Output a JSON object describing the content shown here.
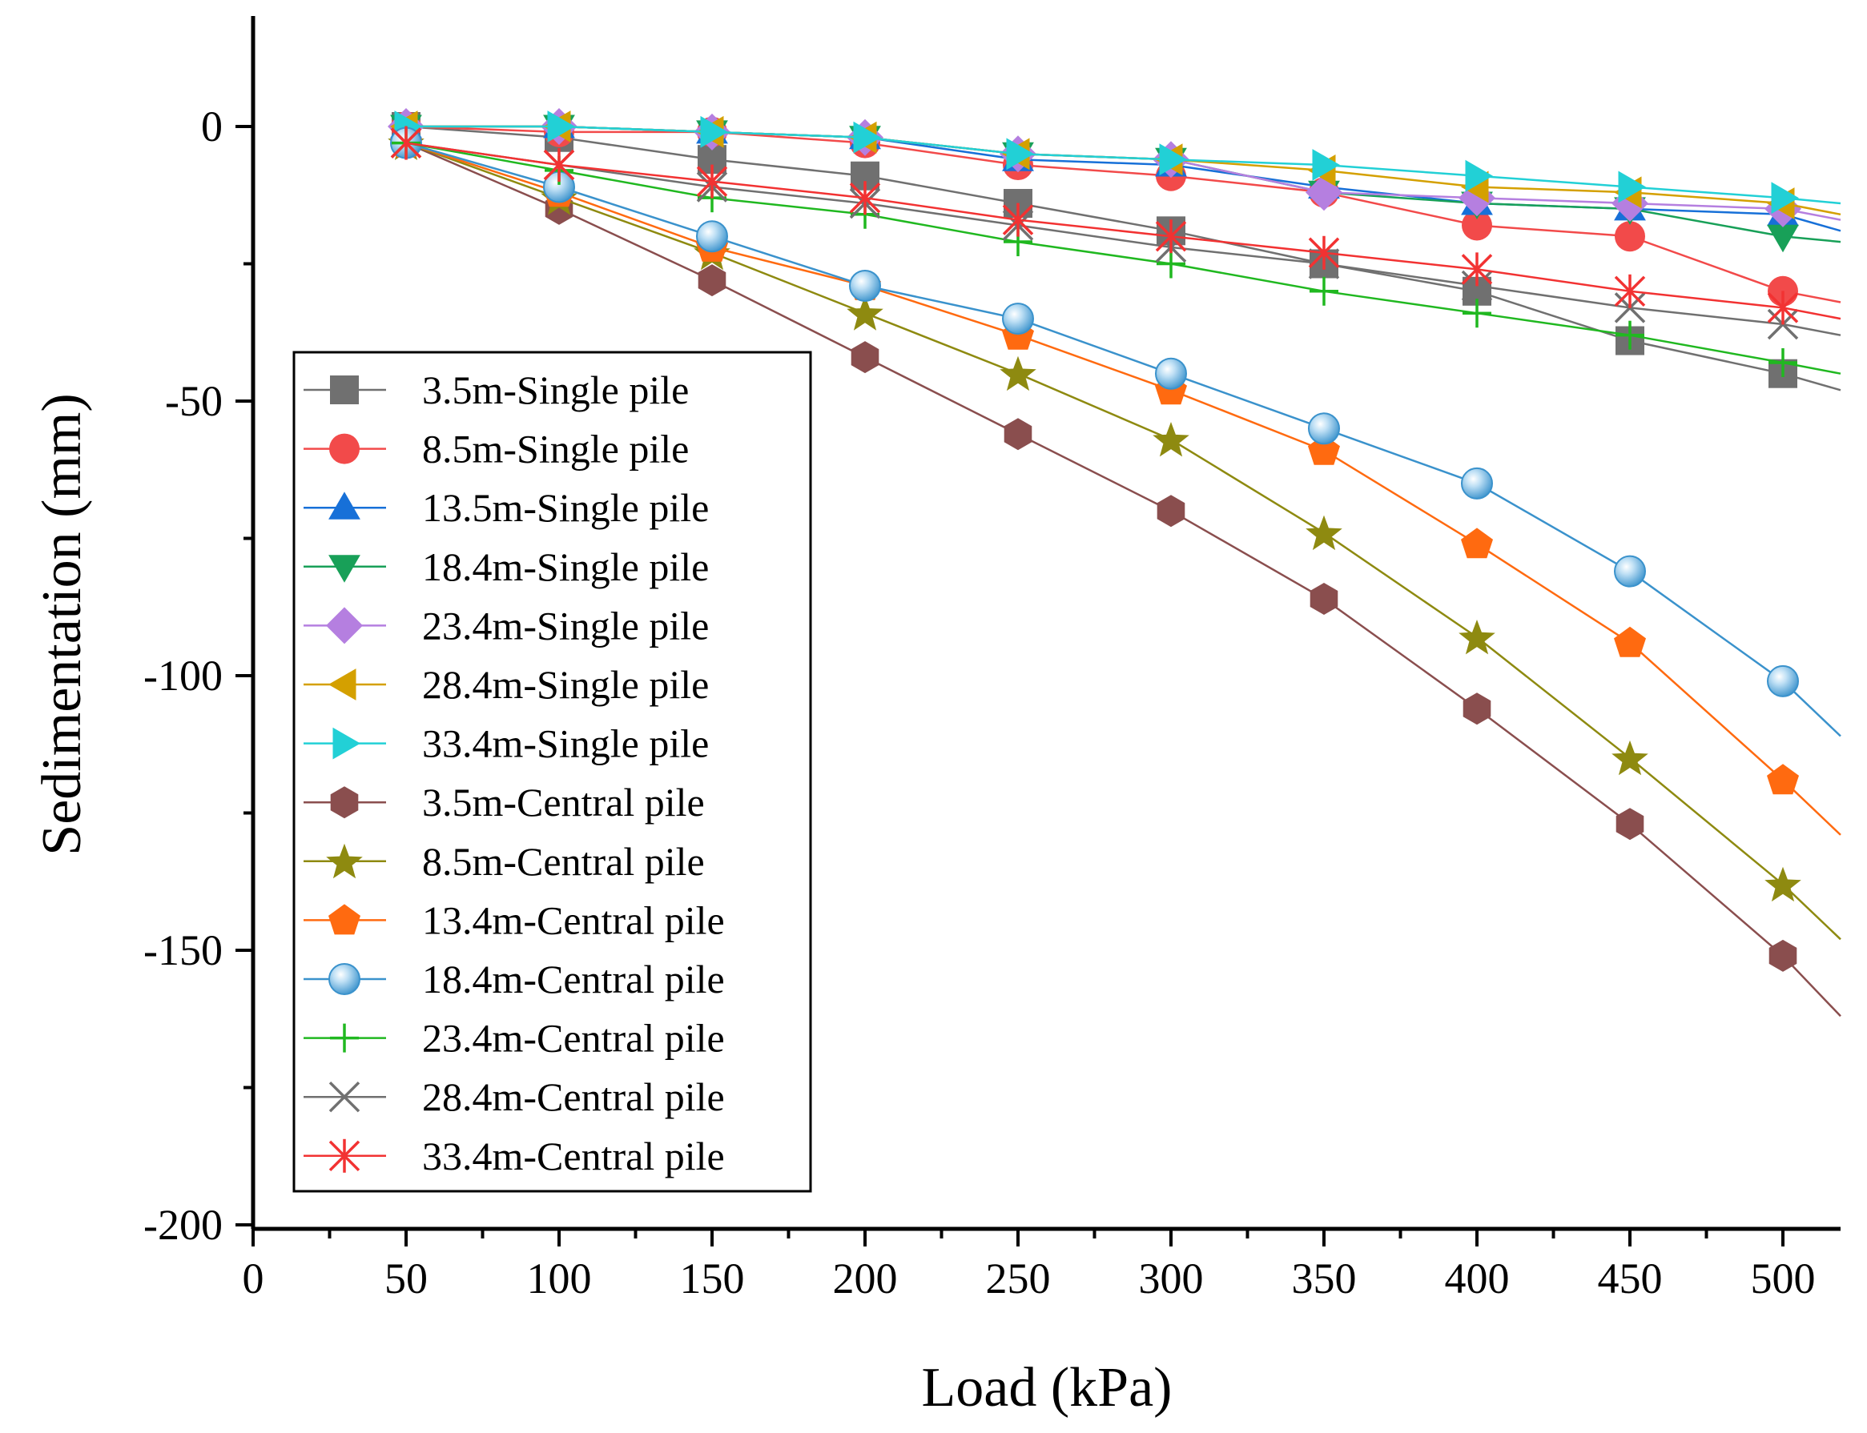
{
  "chart_data": {
    "type": "line",
    "title": "",
    "xlabel": "Load (kPa)",
    "ylabel": "Sedimentation (mm)",
    "xlim": [
      0,
      520
    ],
    "ylim": [
      -200,
      20
    ],
    "x_ticks": [
      0,
      50,
      100,
      150,
      200,
      250,
      300,
      350,
      400,
      450,
      500
    ],
    "y_ticks": [
      0,
      -50,
      -100,
      -150,
      -200
    ],
    "grid": false,
    "legend_position": "center-left",
    "x": [
      50,
      100,
      150,
      200,
      250,
      300,
      350,
      400,
      450,
      500
    ],
    "series": [
      {
        "name": "3.5m-Single pile",
        "color": "#707070",
        "marker": "square",
        "values": [
          0,
          -2,
          -6,
          -9,
          -14,
          -19,
          -25,
          -30,
          -39,
          -45
        ],
        "extend_to": -48
      },
      {
        "name": "8.5m-Single pile",
        "color": "#f24a4a",
        "marker": "circle",
        "values": [
          0,
          -1,
          -1,
          -3,
          -7,
          -9,
          -12,
          -18,
          -20,
          -30
        ],
        "extend_to": -32
      },
      {
        "name": "13.5m-Single pile",
        "color": "#1770d8",
        "marker": "triangle-up",
        "values": [
          0,
          0,
          -1,
          -2,
          -6,
          -7,
          -11,
          -14,
          -15,
          -16
        ],
        "extend_to": -19
      },
      {
        "name": "18.4m-Single pile",
        "color": "#18a058",
        "marker": "triangle-down",
        "values": [
          0,
          0,
          -1,
          -2,
          -5,
          -6,
          -12,
          -14,
          -15,
          -20
        ],
        "extend_to": -21
      },
      {
        "name": "23.4m-Single pile",
        "color": "#b57fe0",
        "marker": "diamond",
        "values": [
          0,
          0,
          -1,
          -2,
          -5,
          -6,
          -12,
          -13,
          -14,
          -15
        ],
        "extend_to": -17
      },
      {
        "name": "28.4m-Single pile",
        "color": "#d4a000",
        "marker": "triangle-left",
        "values": [
          0,
          0,
          -1,
          -2,
          -5,
          -6,
          -8,
          -11,
          -12,
          -14
        ],
        "extend_to": -16
      },
      {
        "name": "33.4m-Single pile",
        "color": "#22d0d6",
        "marker": "triangle-right",
        "values": [
          0,
          0,
          -1,
          -2,
          -5,
          -6,
          -7,
          -9,
          -11,
          -13
        ],
        "extend_to": -14
      },
      {
        "name": "3.5m-Central pile",
        "color": "#8a4e4e",
        "marker": "hexagon",
        "values": [
          -3,
          -15,
          -28,
          -42,
          -56,
          -70,
          -86,
          -106,
          -127,
          -151
        ],
        "extend_to": -162
      },
      {
        "name": "8.5m-Central pile",
        "color": "#8e8a10",
        "marker": "star",
        "values": [
          -3,
          -13,
          -23,
          -34,
          -45,
          -57,
          -74,
          -93,
          -115,
          -138
        ],
        "extend_to": -148
      },
      {
        "name": "13.4m-Central pile",
        "color": "#ff6a10",
        "marker": "pentagon",
        "values": [
          -3,
          -12,
          -22,
          -29,
          -38,
          -48,
          -59,
          -76,
          -94,
          -119
        ],
        "extend_to": -129
      },
      {
        "name": "18.4m-Central pile",
        "color": "#3a92cc",
        "marker": "sphere",
        "values": [
          -3,
          -11,
          -20,
          -29,
          -35,
          -45,
          -55,
          -65,
          -81,
          -101
        ],
        "extend_to": -111
      },
      {
        "name": "23.4m-Central pile",
        "color": "#20b820",
        "marker": "plus",
        "values": [
          -3,
          -8,
          -13,
          -16,
          -21,
          -25,
          -30,
          -34,
          -38,
          -43
        ],
        "extend_to": -45
      },
      {
        "name": "28.4m-Central pile",
        "color": "#707070",
        "marker": "cross",
        "values": [
          -3,
          -7,
          -11,
          -14,
          -18,
          -22,
          -25,
          -29,
          -33,
          -36
        ],
        "extend_to": -38
      },
      {
        "name": "33.4m-Central pile",
        "color": "#f23232",
        "marker": "asterisk",
        "values": [
          -3,
          -7,
          -10,
          -13,
          -17,
          -20,
          -23,
          -26,
          -30,
          -33
        ],
        "extend_to": -35
      }
    ]
  }
}
